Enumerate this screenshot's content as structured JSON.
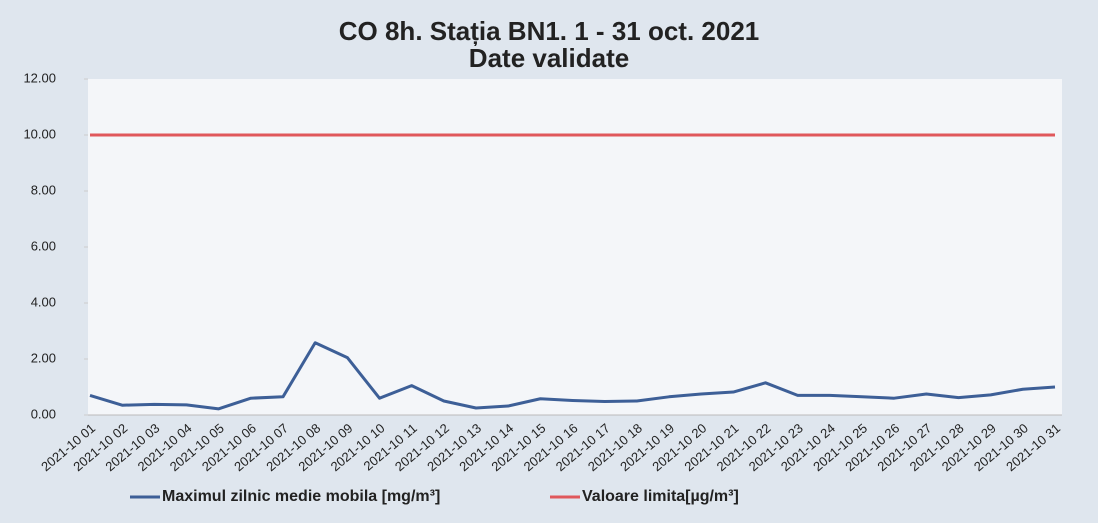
{
  "chart_data": {
    "type": "line",
    "title": "CO 8h. Stația BN1. 1 - 31 oct. 2021",
    "subtitle": "Date validate",
    "categories": [
      "2021-10 01",
      "2021-10 02",
      "2021-10 03",
      "2021-10 04",
      "2021-10 05",
      "2021-10 06",
      "2021-10 07",
      "2021-10 08",
      "2021-10 09",
      "2021-10 10",
      "2021-10 11",
      "2021-10 12",
      "2021-10 13",
      "2021-10 14",
      "2021-10 15",
      "2021-10 16",
      "2021-10 17",
      "2021-10 18",
      "2021-10 19",
      "2021-10 20",
      "2021-10 21",
      "2021-10 22",
      "2021-10 23",
      "2021-10 24",
      "2021-10 25",
      "2021-10 26",
      "2021-10 27",
      "2021-10 28",
      "2021-10 29",
      "2021-10 30",
      "2021-10 31"
    ],
    "series": [
      {
        "name": "Maximul zilnic medie mobila [mg/m³]",
        "color": "#3d5f97",
        "values": [
          0.7,
          0.35,
          0.38,
          0.36,
          0.22,
          0.6,
          0.65,
          2.58,
          2.05,
          0.6,
          1.05,
          0.5,
          0.25,
          0.32,
          0.58,
          0.52,
          0.48,
          0.5,
          0.65,
          0.75,
          0.82,
          1.15,
          0.7,
          0.7,
          0.65,
          0.6,
          0.75,
          0.62,
          0.72,
          0.92,
          1.0
        ]
      },
      {
        "name": "Valoare limita[µg/m³]",
        "color": "#e0585c",
        "values": [
          10,
          10,
          10,
          10,
          10,
          10,
          10,
          10,
          10,
          10,
          10,
          10,
          10,
          10,
          10,
          10,
          10,
          10,
          10,
          10,
          10,
          10,
          10,
          10,
          10,
          10,
          10,
          10,
          10,
          10,
          10
        ]
      }
    ],
    "ylim": [
      0,
      12
    ],
    "yticks": [
      {
        "value": 0,
        "label": "0.00"
      },
      {
        "value": 2,
        "label": "2.00"
      },
      {
        "value": 4,
        "label": "4.00"
      },
      {
        "value": 6,
        "label": "6.00"
      },
      {
        "value": 8,
        "label": "8.00"
      },
      {
        "value": 10,
        "label": "10.00"
      },
      {
        "value": 12,
        "label": "12.00"
      }
    ],
    "legend": "bottom"
  }
}
